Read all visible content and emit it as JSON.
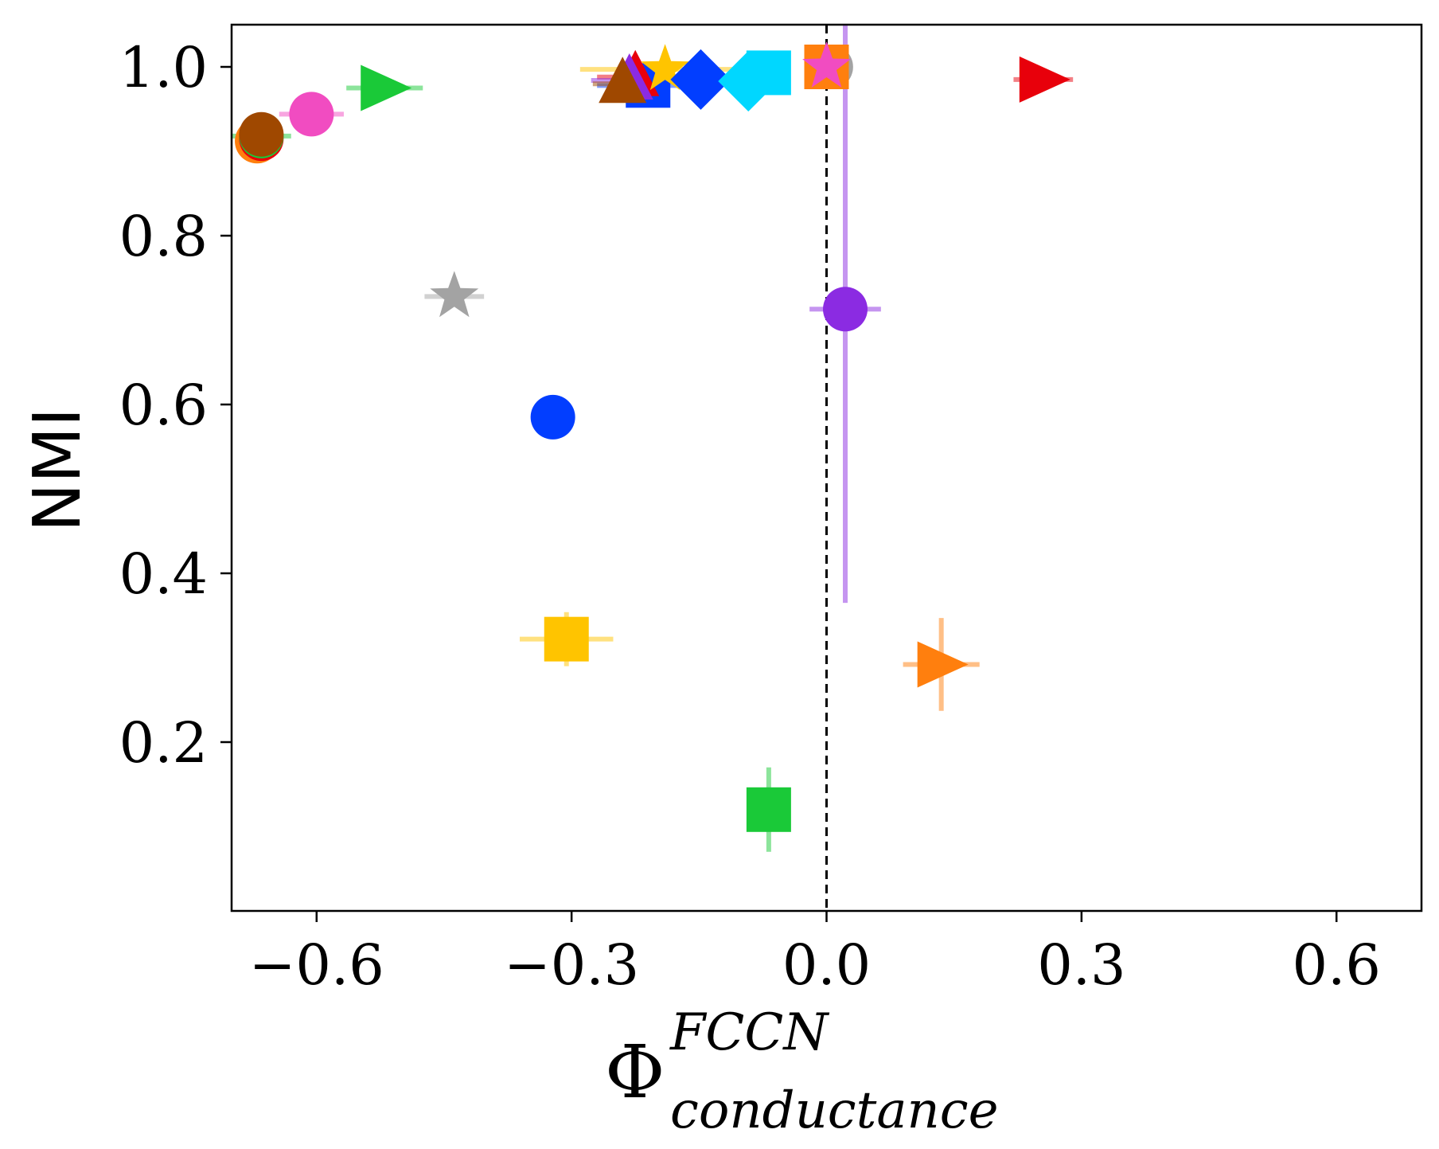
{
  "chart_data": {
    "type": "scatter",
    "title": "",
    "xlabel": {
      "main": "Φ",
      "sup": "FCCN",
      "sub": "conductance"
    },
    "ylabel": "NMI",
    "xlim": [
      -0.7,
      0.7
    ],
    "ylim": [
      0.0,
      1.05
    ],
    "xticks": [
      -0.6,
      -0.3,
      0.0,
      0.3,
      0.6
    ],
    "xtick_labels": [
      "−0.6",
      "−0.3",
      "0.0",
      "0.3",
      "0.6"
    ],
    "yticks": [
      0.2,
      0.4,
      0.6,
      0.8,
      1.0
    ],
    "ytick_labels": [
      "0.2",
      "0.4",
      "0.6",
      "0.8",
      "1.0"
    ],
    "grid": false,
    "reference_line": {
      "x": 0.0,
      "style": "dashed",
      "color": "#000000"
    },
    "points": [
      {
        "x": -0.67,
        "y": 0.912,
        "xerr": 0.02,
        "yerr": 0.0,
        "marker": "circle",
        "color": "#ff7f0e"
      },
      {
        "x": -0.665,
        "y": 0.915,
        "xerr": 0.02,
        "yerr": 0.0,
        "marker": "circle",
        "color": "#e8000b"
      },
      {
        "x": -0.665,
        "y": 0.918,
        "xerr": 0.035,
        "yerr": 0.0,
        "marker": "circle",
        "color": "#1ac938"
      },
      {
        "x": -0.665,
        "y": 0.92,
        "xerr": 0.02,
        "yerr": 0.0,
        "marker": "circle",
        "color": "#9f4800"
      },
      {
        "x": -0.606,
        "y": 0.944,
        "xerr": 0.038,
        "yerr": 0.0,
        "marker": "circle",
        "color": "#f14cc1"
      },
      {
        "x": -0.52,
        "y": 0.975,
        "xerr": 0.045,
        "yerr": 0.0,
        "marker": "triangle-right",
        "color": "#1ac938"
      },
      {
        "x": -0.438,
        "y": 0.728,
        "xerr": 0.035,
        "yerr": 0.0,
        "marker": "star",
        "color": "#a3a3a3"
      },
      {
        "x": -0.322,
        "y": 0.585,
        "xerr": 0.0,
        "yerr": 0.0,
        "marker": "circle",
        "color": "#023eff"
      },
      {
        "x": -0.306,
        "y": 0.322,
        "xerr": 0.055,
        "yerr": 0.032,
        "marker": "square",
        "color": "#ffc400"
      },
      {
        "x": -0.21,
        "y": 0.978,
        "xerr": 0.06,
        "yerr": 0.0,
        "marker": "square",
        "color": "#023eff"
      },
      {
        "x": -0.225,
        "y": 0.988,
        "xerr": 0.045,
        "yerr": 0.0,
        "marker": "triangle-up",
        "color": "#e8000b"
      },
      {
        "x": -0.232,
        "y": 0.984,
        "xerr": 0.045,
        "yerr": 0.0,
        "marker": "triangle-up",
        "color": "#8b2be2"
      },
      {
        "x": -0.24,
        "y": 0.98,
        "xerr": 0.035,
        "yerr": 0.0,
        "marker": "triangle-up",
        "color": "#9f4800"
      },
      {
        "x": -0.19,
        "y": 0.997,
        "xerr": 0.1,
        "yerr": 0.0,
        "marker": "star",
        "color": "#ffc400"
      },
      {
        "x": -0.148,
        "y": 0.985,
        "xerr": 0.0,
        "yerr": 0.0,
        "marker": "diamond",
        "color": "#023eff"
      },
      {
        "x": -0.092,
        "y": 0.983,
        "xerr": 0.0,
        "yerr": 0.0,
        "marker": "diamond",
        "color": "#00d7ff"
      },
      {
        "x": -0.068,
        "y": 0.993,
        "xerr": 0.0,
        "yerr": 0.0,
        "marker": "square",
        "color": "#00d7ff"
      },
      {
        "x": -0.068,
        "y": 0.12,
        "xerr": 0.0,
        "yerr": 0.05,
        "marker": "square",
        "color": "#1ac938"
      },
      {
        "x": 0.005,
        "y": 1.0,
        "xerr": 0.0,
        "yerr": 0.0,
        "marker": "circle",
        "color": "#a3a3a3"
      },
      {
        "x": 0.0,
        "y": 1.0,
        "xerr": 0.0,
        "yerr": 0.0,
        "marker": "square",
        "color": "#ff7f0e"
      },
      {
        "x": 0.0,
        "y": 1.0,
        "xerr": 0.0,
        "yerr": 0.0,
        "marker": "star",
        "color": "#f14cc1"
      },
      {
        "x": 0.022,
        "y": 0.713,
        "xerr": 0.042,
        "yerr": 0.0,
        "marker": "circle",
        "color": "#8b2be2"
      },
      {
        "x": 0.135,
        "y": 0.292,
        "xerr": 0.045,
        "yerr": 0.055,
        "marker": "triangle-right",
        "color": "#ff7f0e"
      },
      {
        "x": 0.255,
        "y": 0.985,
        "xerr": 0.035,
        "yerr": 0.0,
        "marker": "triangle-right",
        "color": "#e8000b"
      }
    ],
    "vertical_error_bars": [
      {
        "x": 0.022,
        "y_low": 0.365,
        "y_high": 1.05,
        "color": "#8b2be2"
      }
    ]
  }
}
